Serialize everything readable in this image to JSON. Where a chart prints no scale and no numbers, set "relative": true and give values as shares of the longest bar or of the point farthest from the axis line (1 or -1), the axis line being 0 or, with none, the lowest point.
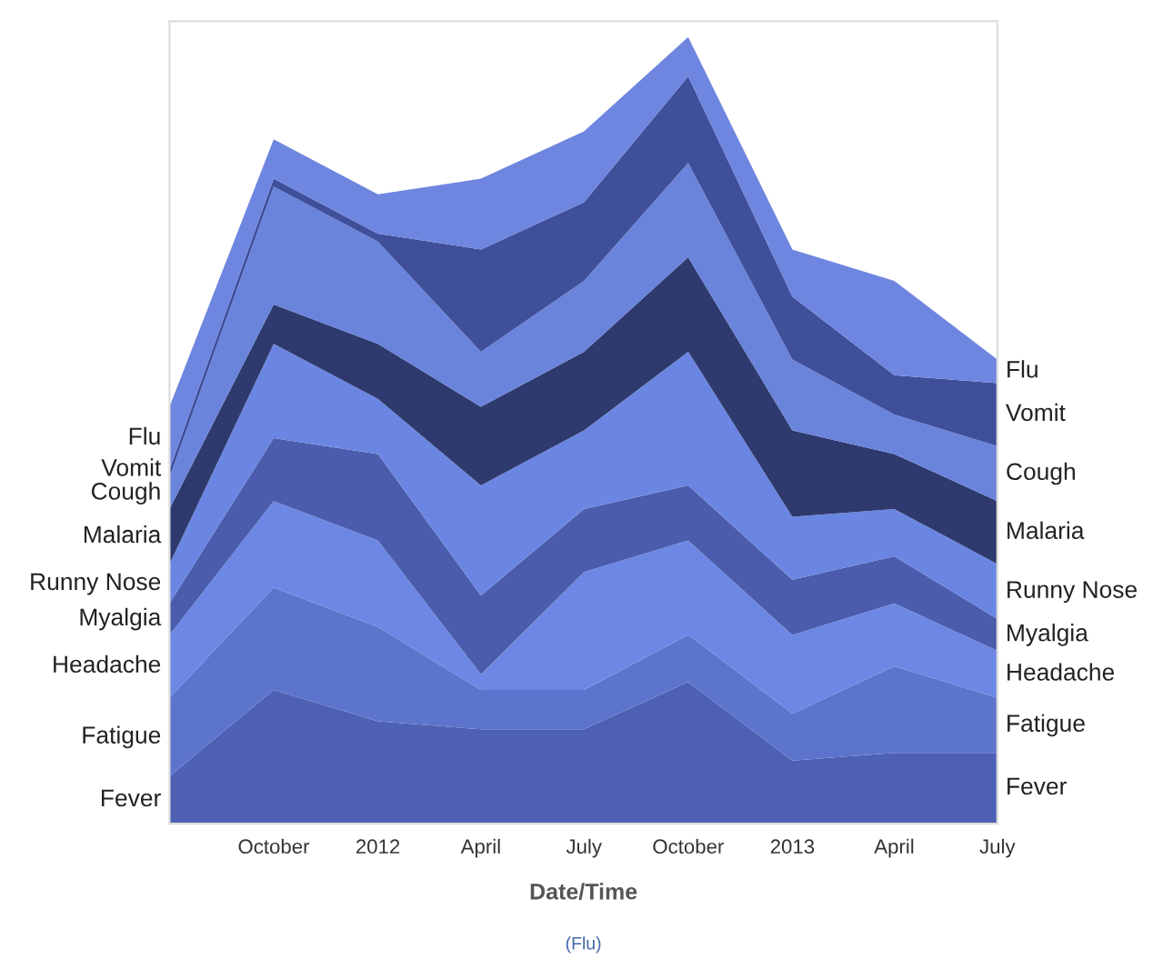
{
  "chart_data": {
    "type": "area",
    "stacked": true,
    "relative": true,
    "xlabel": "Date/Time",
    "annotations": [
      "(Flu)"
    ],
    "x": [
      "2011-07",
      "2011-10",
      "2012-01",
      "2012-04",
      "2012-07",
      "2012-10",
      "2013-01",
      "2013-04",
      "2013-07"
    ],
    "xlim": [
      "2011-07",
      "2013-07"
    ],
    "xticks": [
      {
        "value": "2011-10",
        "label": "October"
      },
      {
        "value": "2012-01",
        "label": "2012"
      },
      {
        "value": "2012-04",
        "label": "April"
      },
      {
        "value": "2012-07",
        "label": "July"
      },
      {
        "value": "2012-10",
        "label": "October"
      },
      {
        "value": "2013-01",
        "label": "2013"
      },
      {
        "value": "2013-04",
        "label": "April"
      },
      {
        "value": "2013-07",
        "label": "July"
      }
    ],
    "grid": false,
    "legend": false,
    "series": [
      {
        "name": "Fever",
        "color": "#4d60b4",
        "values": [
          0.06,
          0.17,
          0.13,
          0.12,
          0.12,
          0.18,
          0.08,
          0.09,
          0.09
        ]
      },
      {
        "name": "Fatigue",
        "color": "#5d74cc",
        "values": [
          0.1,
          0.13,
          0.12,
          0.05,
          0.05,
          0.06,
          0.06,
          0.11,
          0.07
        ]
      },
      {
        "name": "Headache",
        "color": "#6d88e4",
        "values": [
          0.08,
          0.11,
          0.11,
          0.02,
          0.15,
          0.12,
          0.1,
          0.08,
          0.06
        ]
      },
      {
        "name": "Myalgia",
        "color": "#4a5cab",
        "values": [
          0.04,
          0.08,
          0.11,
          0.1,
          0.08,
          0.07,
          0.07,
          0.06,
          0.04
        ]
      },
      {
        "name": "Runny Nose",
        "color": "#6b86e2",
        "values": [
          0.05,
          0.12,
          0.07,
          0.14,
          0.1,
          0.17,
          0.08,
          0.06,
          0.07
        ]
      },
      {
        "name": "Malaria",
        "color": "#2e3a6e",
        "values": [
          0.07,
          0.05,
          0.07,
          0.1,
          0.1,
          0.12,
          0.11,
          0.07,
          0.08
        ]
      },
      {
        "name": "Cough",
        "color": "#6a84dc",
        "values": [
          0.04,
          0.15,
          0.13,
          0.07,
          0.09,
          0.12,
          0.09,
          0.05,
          0.07
        ]
      },
      {
        "name": "Vomit",
        "color": "#3f4f9a",
        "values": [
          0.01,
          0.01,
          0.01,
          0.13,
          0.1,
          0.11,
          0.08,
          0.05,
          0.08
        ]
      },
      {
        "name": "Flu",
        "color": "#6f86e0",
        "values": [
          0.08,
          0.05,
          0.05,
          0.09,
          0.09,
          0.05,
          0.06,
          0.12,
          0.03
        ]
      }
    ]
  }
}
